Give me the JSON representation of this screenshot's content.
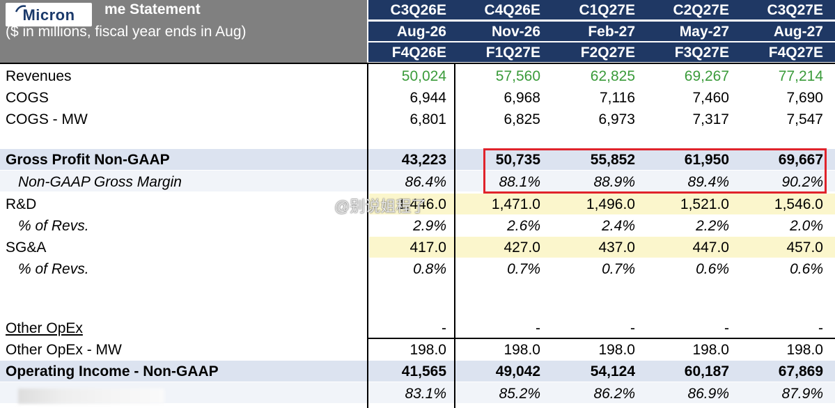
{
  "header": {
    "logo_text": "Micron",
    "title": "me Statement",
    "subtitle": "($ in millions, fiscal year ends in Aug)",
    "calendar_quarters": [
      "C3Q26E",
      "C4Q26E",
      "C1Q27E",
      "C2Q27E",
      "C3Q27E"
    ],
    "period_ends": [
      "Aug-26",
      "Nov-26",
      "Feb-27",
      "May-27",
      "Aug-27"
    ],
    "fiscal_quarters": [
      "F4Q26E",
      "F1Q27E",
      "F2Q27E",
      "F3Q27E",
      "F4Q27E"
    ]
  },
  "rows": {
    "revenues": {
      "label": "Revenues",
      "values": [
        "50,024",
        "57,560",
        "62,825",
        "69,267",
        "77,214"
      ]
    },
    "cogs": {
      "label": "COGS",
      "values": [
        "6,944",
        "6,968",
        "7,116",
        "7,460",
        "7,690"
      ]
    },
    "cogs_mw": {
      "label": "COGS - MW",
      "values": [
        "6,801",
        "6,825",
        "6,973",
        "7,317",
        "7,547"
      ]
    },
    "gross_profit": {
      "label": "Gross Profit Non-GAAP",
      "values": [
        "43,223",
        "50,735",
        "55,852",
        "61,950",
        "69,667"
      ]
    },
    "gross_margin": {
      "label": "Non-GAAP Gross Margin",
      "values": [
        "86.4%",
        "88.1%",
        "88.9%",
        "89.4%",
        "90.2%"
      ]
    },
    "rnd": {
      "label": "R&D",
      "values": [
        "1,446.0",
        "1,471.0",
        "1,496.0",
        "1,521.0",
        "1,546.0"
      ]
    },
    "rnd_pct": {
      "label": "% of Revs.",
      "values": [
        "2.9%",
        "2.6%",
        "2.4%",
        "2.2%",
        "2.0%"
      ]
    },
    "sga": {
      "label": "SG&A",
      "values": [
        "417.0",
        "427.0",
        "437.0",
        "447.0",
        "457.0"
      ]
    },
    "sga_pct": {
      "label": "% of Revs.",
      "values": [
        "0.8%",
        "0.7%",
        "0.7%",
        "0.6%",
        "0.6%"
      ]
    },
    "other_opex": {
      "label": "Other OpEx",
      "values": [
        "-",
        "-",
        "-",
        "-",
        "-"
      ]
    },
    "other_opex_mw": {
      "label": "Other OpEx - MW",
      "values": [
        "198.0",
        "198.0",
        "198.0",
        "198.0",
        "198.0"
      ]
    },
    "operating_income": {
      "label": "Operating Income - Non-GAAP",
      "values": [
        "41,565",
        "49,042",
        "54,124",
        "60,187",
        "67,869"
      ]
    },
    "operating_margin": {
      "label": "",
      "values": [
        "83.1%",
        "85.2%",
        "86.2%",
        "86.9%",
        "87.9%"
      ]
    }
  },
  "watermark": "@别说姐程了",
  "colors": {
    "header_navy": "#1f3864",
    "header_gray": "#808080",
    "band_blue": "#dce3f0",
    "band_yellow": "#fbf6cc",
    "revenue_green": "#3a9b3a",
    "highlight_red": "#e0232b"
  }
}
